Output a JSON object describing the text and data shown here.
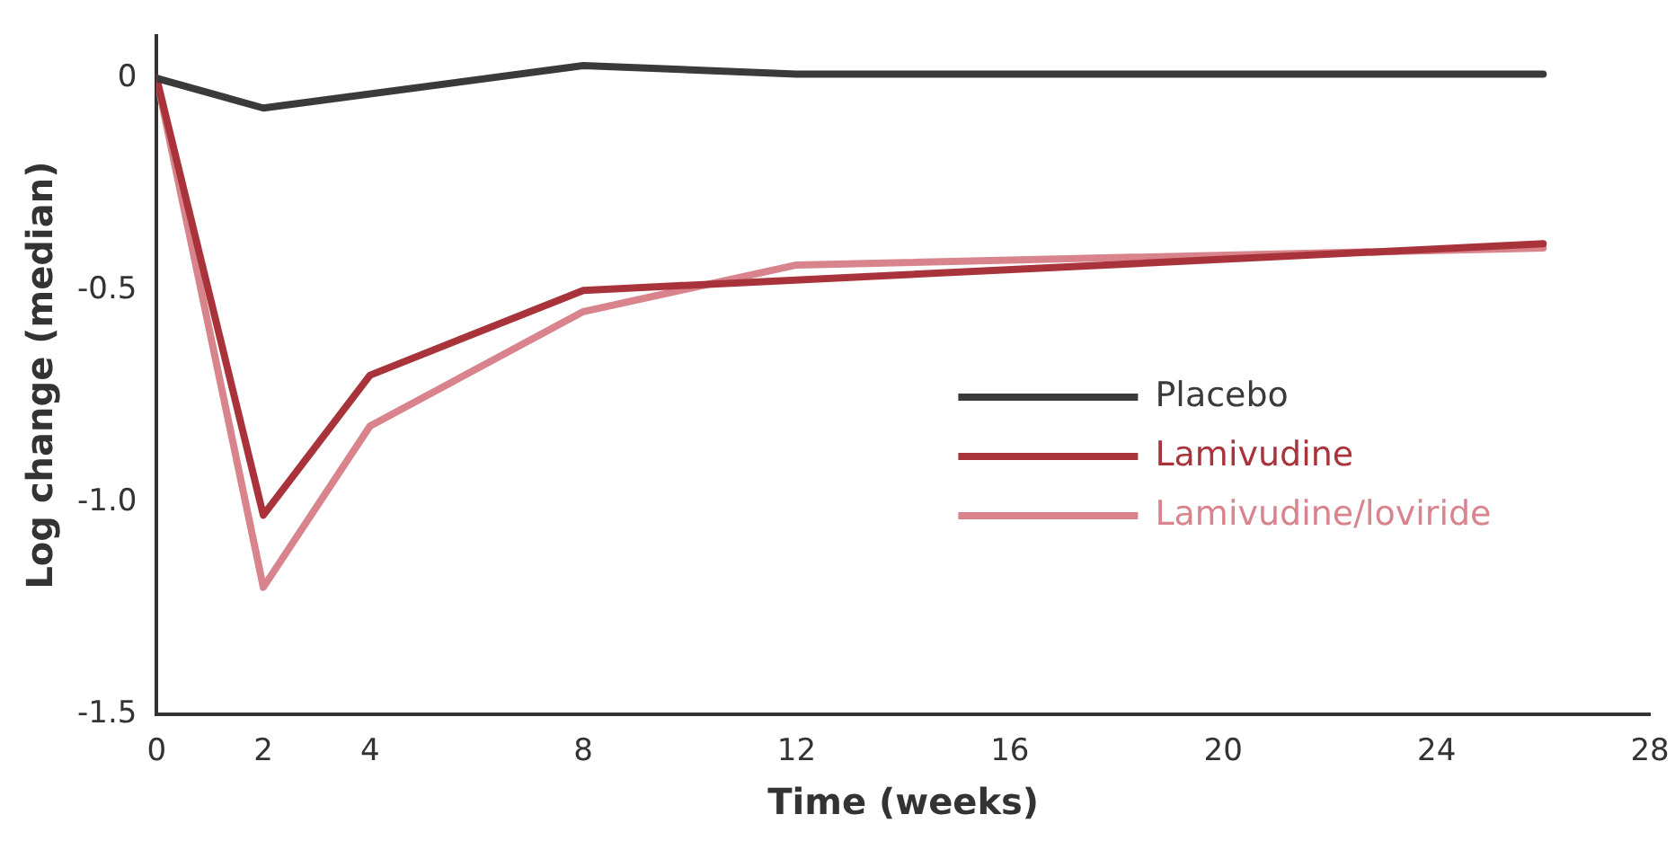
{
  "chart_data": {
    "type": "line",
    "xlabel": "Time (weeks)",
    "ylabel": "Log change (median)",
    "xlim": [
      0,
      28
    ],
    "xticks": [
      0,
      2,
      4,
      8,
      12,
      16,
      20,
      24,
      28
    ],
    "ylim": [
      -1.5,
      0.1
    ],
    "yticks": [
      0,
      {
        "value": -0.5,
        "label": "-0.5"
      },
      {
        "value": -1,
        "label": "-1.0"
      },
      {
        "value": -1.5,
        "label": "-1.5"
      }
    ],
    "grid": false,
    "legend": "right",
    "marker": "none",
    "line_style": "solid",
    "series": [
      {
        "name": "Placebo",
        "color": "#3a3a3a",
        "x": [
          0,
          2,
          8,
          12,
          26
        ],
        "values": [
          0,
          -0.07,
          0.03,
          0.01,
          0.01
        ]
      },
      {
        "name": "Lamivudine",
        "color": "#a8333b",
        "x": [
          0,
          2,
          4,
          8,
          26
        ],
        "values": [
          0,
          -1.03,
          -0.7,
          -0.5,
          -0.39
        ]
      },
      {
        "name": "Lamivudine/loviride",
        "color": "#d9848c",
        "x": [
          0,
          2,
          4,
          8,
          12,
          26
        ],
        "values": [
          0,
          -1.2,
          -0.82,
          -0.55,
          -0.44,
          -0.4
        ]
      }
    ]
  }
}
